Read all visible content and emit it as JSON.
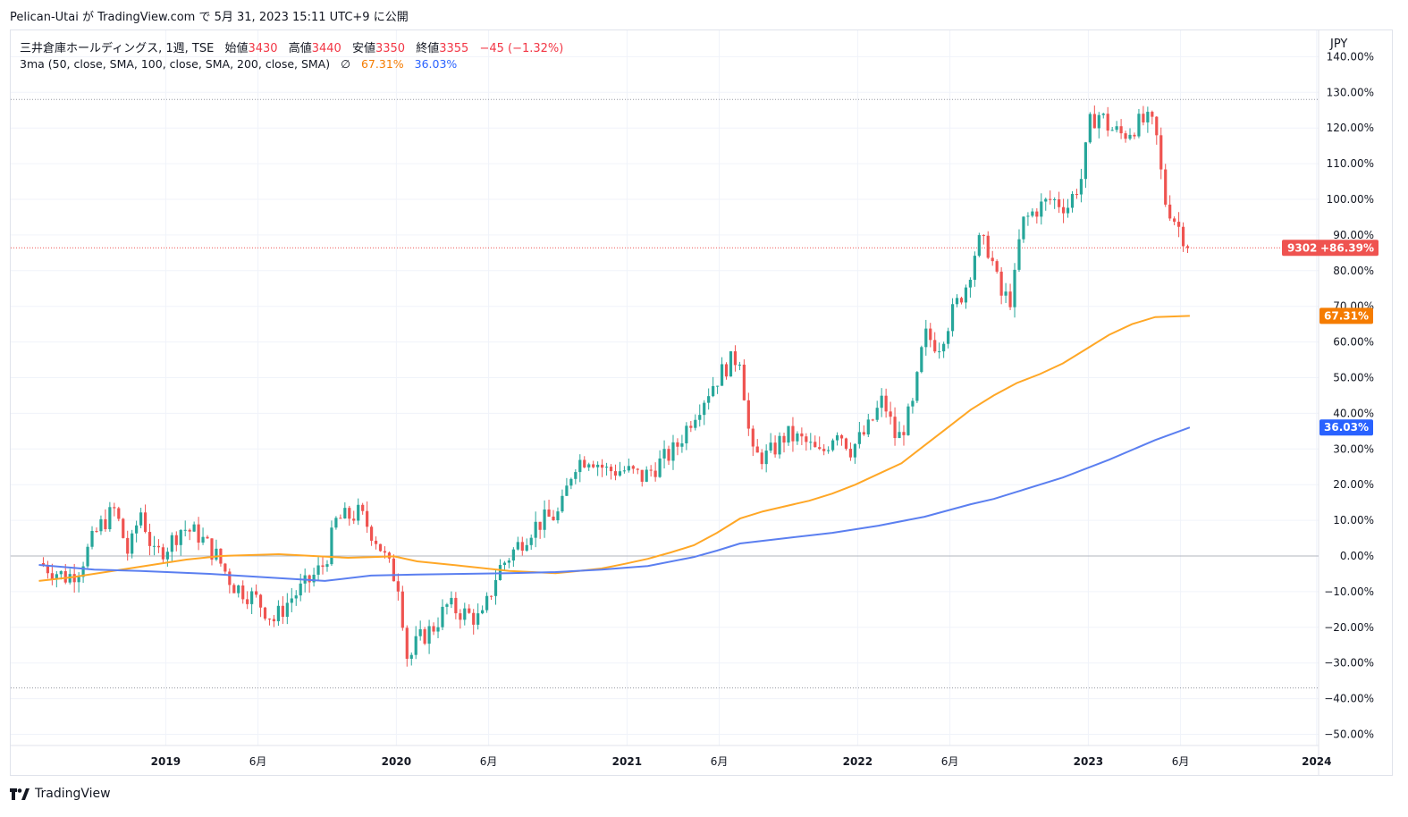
{
  "header": {
    "publish_line": "Pelican-Utai が TradingView.com で 5月 31, 2023 15:11 UTC+9 に公開"
  },
  "legend": {
    "symbol_line": "三井倉庫ホールディングス, 1週, TSE",
    "open_label": "始値",
    "open_value": "3430",
    "high_label": "高値",
    "high_value": "3440",
    "low_label": "安値",
    "low_value": "3350",
    "close_label": "終値",
    "close_value": "3355",
    "change": "−45 (−1.32%)",
    "indicator": "3ma (50, close, SMA, 100, close, SMA, 200, close, SMA)",
    "eye_symbol": "∅",
    "ma_value_1": "67.31%",
    "ma_value_2": "36.03%"
  },
  "currency": "JPY",
  "footer": {
    "brand": "TradingView"
  },
  "colors": {
    "up": "#26a69a",
    "down": "#ef5350",
    "ma100": "#ffa726",
    "ma200": "#5b7ff0",
    "tag_price": "#ef5350",
    "tag_ma100": "#f57c00",
    "tag_ma200": "#2962ff"
  },
  "chart_data": {
    "type": "candlestick",
    "title": "三井倉庫ホールディングス, 1週, TSE",
    "units": "percent change",
    "ylim": [
      -52,
      142
    ],
    "y_ticks": [
      -50,
      -40,
      -30,
      -20,
      -10,
      0,
      10,
      20,
      30,
      40,
      50,
      60,
      70,
      80,
      90,
      100,
      110,
      120,
      130,
      140
    ],
    "x_labels": [
      {
        "t": 0.11,
        "label": "2019"
      },
      {
        "t": 0.51,
        "label": "6月"
      },
      {
        "t": 1.11,
        "label": "2020"
      },
      {
        "t": 1.51,
        "label": "6月"
      },
      {
        "t": 2.11,
        "label": "2021"
      },
      {
        "t": 2.51,
        "label": "6月"
      },
      {
        "t": 3.11,
        "label": "2022"
      },
      {
        "t": 3.51,
        "label": "6月"
      },
      {
        "t": 4.11,
        "label": "2023"
      },
      {
        "t": 4.51,
        "label": "6月"
      },
      {
        "t": 5.1,
        "label": "2024"
      }
    ],
    "x_range": [
      -0.44,
      5.35
    ],
    "last_t": 4.55,
    "price_path": [
      [
        -0.44,
        -2
      ],
      [
        -0.32,
        -6
      ],
      [
        -0.27,
        -4
      ],
      [
        -0.18,
        8
      ],
      [
        -0.11,
        13
      ],
      [
        -0.05,
        0
      ],
      [
        0.0,
        13
      ],
      [
        0.06,
        0
      ],
      [
        0.12,
        3
      ],
      [
        0.18,
        8
      ],
      [
        0.25,
        6
      ],
      [
        0.33,
        0
      ],
      [
        0.4,
        -8
      ],
      [
        0.5,
        -12
      ],
      [
        0.58,
        -18
      ],
      [
        0.65,
        -12
      ],
      [
        0.72,
        -8
      ],
      [
        0.8,
        -2
      ],
      [
        0.85,
        10
      ],
      [
        0.95,
        12
      ],
      [
        1.03,
        4
      ],
      [
        1.07,
        -2
      ],
      [
        1.12,
        -8
      ],
      [
        1.16,
        -30
      ],
      [
        1.2,
        -24
      ],
      [
        1.27,
        -20
      ],
      [
        1.33,
        -14
      ],
      [
        1.4,
        -16
      ],
      [
        1.48,
        -18
      ],
      [
        1.55,
        -4
      ],
      [
        1.6,
        0
      ],
      [
        1.65,
        4
      ],
      [
        1.7,
        8
      ],
      [
        1.75,
        10
      ],
      [
        1.82,
        12
      ],
      [
        1.88,
        26
      ],
      [
        1.95,
        28
      ],
      [
        2.02,
        24
      ],
      [
        2.1,
        24
      ],
      [
        2.18,
        22
      ],
      [
        2.25,
        26
      ],
      [
        2.32,
        30
      ],
      [
        2.4,
        40
      ],
      [
        2.48,
        48
      ],
      [
        2.55,
        54
      ],
      [
        2.6,
        56
      ],
      [
        2.65,
        28
      ],
      [
        2.72,
        28
      ],
      [
        2.8,
        34
      ],
      [
        2.88,
        32
      ],
      [
        2.95,
        28
      ],
      [
        3.02,
        36
      ],
      [
        3.08,
        30
      ],
      [
        3.15,
        35
      ],
      [
        3.22,
        44
      ],
      [
        3.28,
        32
      ],
      [
        3.35,
        42
      ],
      [
        3.4,
        62
      ],
      [
        3.46,
        59
      ],
      [
        3.52,
        68
      ],
      [
        3.58,
        76
      ],
      [
        3.63,
        88
      ],
      [
        3.68,
        86
      ],
      [
        3.73,
        73
      ],
      [
        3.78,
        72
      ],
      [
        3.82,
        93
      ],
      [
        3.88,
        97
      ],
      [
        3.95,
        100
      ],
      [
        4.02,
        98
      ],
      [
        4.08,
        106
      ],
      [
        4.12,
        122
      ],
      [
        4.16,
        124
      ],
      [
        4.2,
        120
      ],
      [
        4.26,
        118
      ],
      [
        4.32,
        121
      ],
      [
        4.36,
        122
      ],
      [
        4.4,
        120
      ],
      [
        4.44,
        100
      ],
      [
        4.48,
        95
      ],
      [
        4.52,
        90
      ],
      [
        4.55,
        86.39
      ]
    ],
    "series": [
      {
        "name": "SMA 50",
        "color": "#ef5350",
        "visible": false,
        "values": []
      },
      {
        "name": "SMA 100",
        "color": "#ffa726",
        "points": [
          [
            -0.44,
            -7
          ],
          [
            -0.3,
            -6
          ],
          [
            -0.1,
            -4
          ],
          [
            0.0,
            -3
          ],
          [
            0.2,
            -1
          ],
          [
            0.35,
            0
          ],
          [
            0.6,
            0.5
          ],
          [
            0.9,
            -0.5
          ],
          [
            1.0,
            -0.3
          ],
          [
            1.1,
            -0.1
          ],
          [
            1.2,
            -1.5
          ],
          [
            1.4,
            -2.8
          ],
          [
            1.6,
            -4.2
          ],
          [
            1.8,
            -4.8
          ],
          [
            1.9,
            -4.2
          ],
          [
            2.0,
            -3.5
          ],
          [
            2.1,
            -2.2
          ],
          [
            2.2,
            -0.8
          ],
          [
            2.3,
            1
          ],
          [
            2.4,
            3
          ],
          [
            2.5,
            6.5
          ],
          [
            2.6,
            10.5
          ],
          [
            2.7,
            12.5
          ],
          [
            2.8,
            14
          ],
          [
            2.9,
            15.5
          ],
          [
            3.0,
            17.5
          ],
          [
            3.1,
            20
          ],
          [
            3.2,
            23
          ],
          [
            3.3,
            26
          ],
          [
            3.4,
            31
          ],
          [
            3.5,
            36
          ],
          [
            3.6,
            41
          ],
          [
            3.7,
            45
          ],
          [
            3.8,
            48.5
          ],
          [
            3.9,
            51
          ],
          [
            4.0,
            54
          ],
          [
            4.1,
            58
          ],
          [
            4.2,
            62
          ],
          [
            4.3,
            65
          ],
          [
            4.4,
            67
          ],
          [
            4.55,
            67.31
          ]
        ]
      },
      {
        "name": "SMA 200",
        "color": "#5b7ff0",
        "points": [
          [
            -0.44,
            -2.5
          ],
          [
            -0.2,
            -3.8
          ],
          [
            0.0,
            -4.2
          ],
          [
            0.3,
            -5
          ],
          [
            0.6,
            -6.2
          ],
          [
            0.8,
            -7
          ],
          [
            1.0,
            -5.5
          ],
          [
            1.2,
            -5.2
          ],
          [
            1.4,
            -5
          ],
          [
            1.6,
            -4.8
          ],
          [
            1.8,
            -4.5
          ],
          [
            2.0,
            -3.8
          ],
          [
            2.2,
            -2.8
          ],
          [
            2.4,
            -0.3
          ],
          [
            2.5,
            1.5
          ],
          [
            2.6,
            3.5
          ],
          [
            2.8,
            5
          ],
          [
            3.0,
            6.5
          ],
          [
            3.2,
            8.5
          ],
          [
            3.4,
            11
          ],
          [
            3.6,
            14.5
          ],
          [
            3.7,
            16
          ],
          [
            3.8,
            18
          ],
          [
            4.0,
            22
          ],
          [
            4.2,
            27
          ],
          [
            4.4,
            32.5
          ],
          [
            4.55,
            36.03
          ]
        ]
      }
    ],
    "reference_lines": [
      0,
      128,
      -37
    ],
    "current_line": 86.39,
    "tags": [
      {
        "label": "9302",
        "value_label": "+86.39%",
        "y": 86.39,
        "kind": "price"
      },
      {
        "value_label": "67.31%",
        "y": 67.31,
        "kind": "ma100"
      },
      {
        "value_label": "36.03%",
        "y": 36.03,
        "kind": "ma200"
      }
    ]
  }
}
